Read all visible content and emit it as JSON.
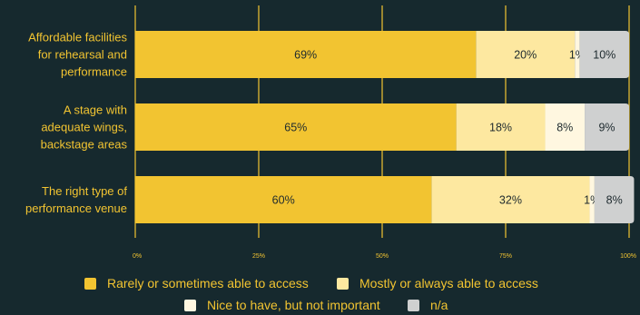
{
  "chart_data": {
    "type": "bar",
    "orientation": "horizontal",
    "stacked": true,
    "categories": [
      [
        "Affordable facilities",
        "for rehearsal and",
        "performance"
      ],
      [
        "A stage with",
        "adequate wings,",
        "backstage areas"
      ],
      [
        "The right type of",
        "performance venue"
      ]
    ],
    "series": [
      {
        "name": "Rarely or sometimes able to access",
        "color": "#f2c431",
        "values": [
          69,
          65,
          60
        ]
      },
      {
        "name": "Mostly or always able to access",
        "color": "#fde8a0",
        "values": [
          20,
          18,
          32
        ]
      },
      {
        "name": "Nice to have, but not important",
        "color": "#fff7e0",
        "values": [
          1,
          8,
          1
        ]
      },
      {
        "name": "n/a",
        "color": "#cfd0d0",
        "values": [
          10,
          9,
          8
        ]
      }
    ],
    "xticks": [
      "0%",
      "25%",
      "50%",
      "75%",
      "100%"
    ],
    "xlim": [
      0,
      100
    ],
    "grid": true,
    "legend_position": "bottom"
  }
}
